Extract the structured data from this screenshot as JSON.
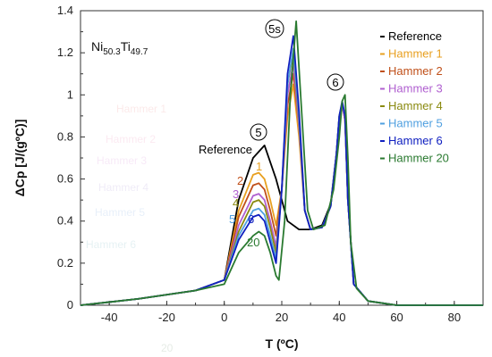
{
  "chart_data": {
    "type": "line",
    "title": "",
    "xlabel": "T (ºC)",
    "ylabel": "ΔCp  [J/(gºC)]",
    "xlim": [
      -50,
      90
    ],
    "ylim": [
      0,
      1.4
    ],
    "xticks": [
      "-40",
      "-20",
      "0",
      "20",
      "40",
      "60",
      "80"
    ],
    "yticks": [
      "0",
      "0.2",
      "0.4",
      "0.6",
      "0.8",
      "1",
      "1.2",
      "1.4"
    ],
    "grid": false,
    "legend_position": "top-right",
    "sample_label": {
      "base1": "Ni",
      "sub1": "50.3",
      "base2": "Ti",
      "sub2": "49.7"
    },
    "annotations": {
      "peak_5": "5",
      "peak_5s": "5s",
      "peak_6": "6",
      "reference_label": "Reference",
      "curve_numbers": [
        "1",
        "2",
        "3",
        "4",
        "5",
        "6",
        "20"
      ]
    },
    "faint_labels": [
      "Hammer 1",
      "Hammer 2",
      "Hammer 3",
      "Hammer 4",
      "Hammer 5",
      "Hammer 6",
      "20"
    ],
    "series": [
      {
        "name": "Reference",
        "color": "#000000",
        "x": [
          -50,
          -30,
          -10,
          0,
          5,
          10,
          14,
          18,
          22,
          26,
          30,
          34,
          37,
          39,
          40,
          41,
          42,
          43,
          45,
          50,
          60,
          70,
          80,
          90
        ],
        "y": [
          0.0,
          0.03,
          0.07,
          0.12,
          0.5,
          0.7,
          0.76,
          0.6,
          0.4,
          0.36,
          0.36,
          0.38,
          0.48,
          0.72,
          0.9,
          0.96,
          0.9,
          0.5,
          0.1,
          0.02,
          0.0,
          0.0,
          0.0,
          0.0
        ]
      },
      {
        "name": "Hammer 1",
        "color": "#E8A020",
        "x": [
          -50,
          -30,
          -10,
          0,
          5,
          10,
          12,
          14,
          16,
          18,
          20,
          22,
          24,
          26,
          28,
          30,
          34,
          37,
          39,
          40,
          41,
          42,
          43,
          45,
          50,
          60,
          70,
          80,
          90
        ],
        "y": [
          0.0,
          0.03,
          0.07,
          0.12,
          0.45,
          0.62,
          0.63,
          0.6,
          0.5,
          0.38,
          0.55,
          0.9,
          1.05,
          0.8,
          0.45,
          0.36,
          0.37,
          0.47,
          0.72,
          0.88,
          0.95,
          0.88,
          0.5,
          0.1,
          0.02,
          0.0,
          0.0,
          0.0,
          0.0
        ]
      },
      {
        "name": "Hammer 2",
        "color": "#C0501A",
        "x": [
          -50,
          -30,
          -10,
          0,
          5,
          10,
          12,
          14,
          16,
          18,
          20,
          22,
          24,
          26,
          28,
          30,
          34,
          37,
          39,
          40,
          41,
          42,
          43,
          45,
          50,
          60,
          70,
          80,
          90
        ],
        "y": [
          0.0,
          0.03,
          0.07,
          0.12,
          0.42,
          0.57,
          0.58,
          0.55,
          0.45,
          0.33,
          0.55,
          0.95,
          1.1,
          0.85,
          0.45,
          0.36,
          0.37,
          0.47,
          0.72,
          0.88,
          0.95,
          0.88,
          0.5,
          0.1,
          0.02,
          0.0,
          0.0,
          0.0,
          0.0
        ]
      },
      {
        "name": "Hammer 3",
        "color": "#B060D0",
        "x": [
          -50,
          -30,
          -10,
          0,
          5,
          10,
          12,
          14,
          16,
          18,
          20,
          22,
          24,
          26,
          28,
          30,
          34,
          37,
          39,
          40,
          41,
          42,
          43,
          45,
          50,
          60,
          70,
          80,
          90
        ],
        "y": [
          0.0,
          0.03,
          0.07,
          0.12,
          0.38,
          0.52,
          0.53,
          0.5,
          0.4,
          0.28,
          0.55,
          1.0,
          1.15,
          0.85,
          0.45,
          0.36,
          0.37,
          0.47,
          0.72,
          0.88,
          0.95,
          0.88,
          0.5,
          0.1,
          0.02,
          0.0,
          0.0,
          0.0,
          0.0
        ]
      },
      {
        "name": "Hammer 4",
        "color": "#8A8A10",
        "x": [
          -50,
          -30,
          -10,
          0,
          5,
          10,
          12,
          14,
          16,
          18,
          20,
          22,
          24,
          26,
          28,
          30,
          34,
          37,
          39,
          40,
          41,
          42,
          43,
          45,
          50,
          60,
          70,
          80,
          90
        ],
        "y": [
          0.0,
          0.03,
          0.07,
          0.12,
          0.35,
          0.49,
          0.5,
          0.47,
          0.37,
          0.25,
          0.55,
          1.05,
          1.2,
          0.88,
          0.45,
          0.36,
          0.37,
          0.47,
          0.72,
          0.9,
          0.96,
          0.9,
          0.5,
          0.1,
          0.02,
          0.0,
          0.0,
          0.0,
          0.0
        ]
      },
      {
        "name": "Hammer 5",
        "color": "#50A0E0",
        "x": [
          -50,
          -30,
          -10,
          0,
          5,
          10,
          12,
          14,
          16,
          18,
          20,
          22,
          24,
          26,
          28,
          30,
          34,
          37,
          39,
          40,
          41,
          42,
          43,
          45,
          50,
          60,
          70,
          80,
          90
        ],
        "y": [
          0.0,
          0.03,
          0.07,
          0.12,
          0.33,
          0.45,
          0.46,
          0.43,
          0.33,
          0.22,
          0.55,
          1.05,
          1.22,
          0.9,
          0.45,
          0.36,
          0.37,
          0.47,
          0.72,
          0.9,
          0.96,
          0.9,
          0.5,
          0.1,
          0.02,
          0.0,
          0.0,
          0.0,
          0.0
        ]
      },
      {
        "name": "Hammer 6",
        "color": "#1020C0",
        "x": [
          -50,
          -30,
          -10,
          0,
          5,
          10,
          12,
          14,
          16,
          18,
          20,
          22,
          24,
          26,
          28,
          30,
          34,
          37,
          39,
          40,
          41,
          42,
          43,
          45,
          50,
          60,
          70,
          80,
          90
        ],
        "y": [
          0.0,
          0.03,
          0.07,
          0.12,
          0.31,
          0.42,
          0.43,
          0.4,
          0.3,
          0.2,
          0.55,
          1.1,
          1.28,
          0.92,
          0.45,
          0.36,
          0.37,
          0.47,
          0.72,
          0.9,
          0.97,
          0.9,
          0.5,
          0.1,
          0.02,
          0.0,
          0.0,
          0.0,
          0.0
        ]
      },
      {
        "name": "Hammer 20",
        "color": "#2A7A30",
        "x": [
          -50,
          -30,
          -10,
          0,
          5,
          10,
          12,
          14,
          16,
          18,
          19,
          21,
          23,
          25,
          27,
          29,
          31,
          35,
          38,
          40,
          41,
          42,
          43,
          44,
          46,
          50,
          60,
          70,
          80,
          90
        ],
        "y": [
          0.0,
          0.03,
          0.07,
          0.1,
          0.25,
          0.33,
          0.35,
          0.33,
          0.25,
          0.14,
          0.12,
          0.4,
          1.0,
          1.35,
          0.9,
          0.45,
          0.36,
          0.38,
          0.55,
          0.8,
          0.97,
          1.0,
          0.7,
          0.3,
          0.08,
          0.02,
          0.0,
          0.0,
          0.0,
          0.0
        ]
      }
    ]
  }
}
